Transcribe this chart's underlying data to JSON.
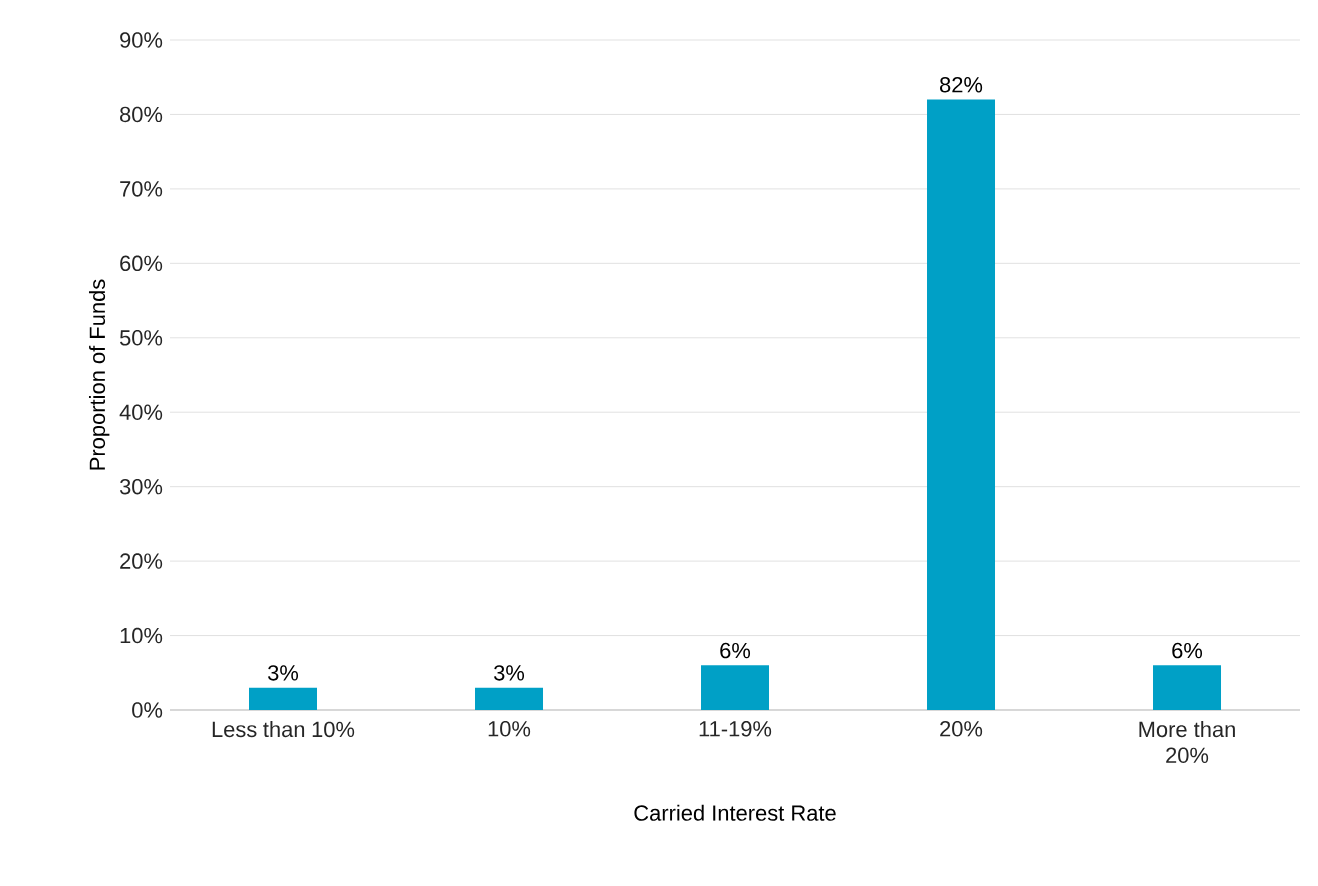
{
  "chart_data": {
    "type": "bar",
    "xlabel": "Carried Interest Rate",
    "ylabel": "Proportion of Funds",
    "categories": [
      "Less than 10%",
      "10%",
      "11-19%",
      "20%",
      "More than 20%"
    ],
    "values": [
      3,
      3,
      6,
      82,
      6
    ],
    "value_labels": [
      "3%",
      "3%",
      "6%",
      "82%",
      "6%"
    ],
    "color": "#00a0c6",
    "ylim": [
      0,
      90
    ],
    "yticks": [
      {
        "value": 0,
        "label": "0%"
      },
      {
        "value": 10,
        "label": "10%"
      },
      {
        "value": 20,
        "label": "20%"
      },
      {
        "value": 30,
        "label": "30%"
      },
      {
        "value": 40,
        "label": "40%"
      },
      {
        "value": 50,
        "label": "50%"
      },
      {
        "value": 60,
        "label": "60%"
      },
      {
        "value": 70,
        "label": "70%"
      },
      {
        "value": 80,
        "label": "80%"
      },
      {
        "value": 90,
        "label": "90%"
      }
    ],
    "grid": "y"
  }
}
